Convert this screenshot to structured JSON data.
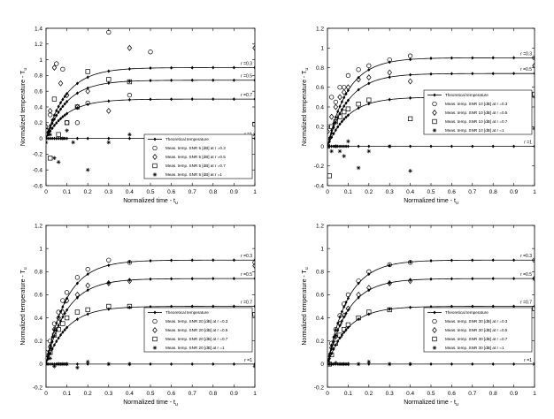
{
  "chart_data": [
    {
      "type": "line",
      "xlabel": "Normalized time - t",
      "xlabel_sub": "u",
      "ylabel": "Normalized temperature - T",
      "ylabel_sub": "u",
      "xlim": [
        0,
        1
      ],
      "ylim": [
        -0.6,
        1.4
      ],
      "xticks": [
        0,
        0.1,
        0.2,
        0.3,
        0.4,
        0.5,
        0.6,
        0.7,
        0.8,
        0.9,
        1
      ],
      "yticks": [
        -0.6,
        -0.4,
        -0.2,
        0,
        0.2,
        0.4,
        0.6,
        0.8,
        1,
        1.2,
        1.4
      ],
      "legend_position": "lower-right",
      "curve_labels": [
        {
          "label": "r =0.3",
          "y": 0.9
        },
        {
          "label": "r =0.5",
          "y": 0.74
        },
        {
          "label": "r =0.7",
          "y": 0.5
        },
        {
          "label": "r =1",
          "y": 0.0
        }
      ],
      "theory": {
        "name": "Theoretical temperature",
        "x": [
          0,
          0.01,
          0.02,
          0.03,
          0.04,
          0.05,
          0.06,
          0.07,
          0.08,
          0.09,
          0.1,
          0.15,
          0.2,
          0.3,
          0.4,
          0.5,
          0.6,
          0.7,
          0.8,
          0.9,
          1
        ],
        "levels": [
          0.9,
          0.74,
          0.5,
          0.0
        ],
        "rate": 10
      },
      "series": [
        {
          "name": "Meas. temp. SNR 5 [dB] at r =0.3",
          "marker": "circle",
          "x": [
            0,
            0.02,
            0.05,
            0.08,
            0.1,
            0.15,
            0.2,
            0.3,
            0.4,
            0.5
          ],
          "y": [
            0.1,
            0.3,
            0.95,
            0.88,
            0.2,
            0.2,
            0.45,
            1.35,
            0.55,
            1.1
          ]
        },
        {
          "name": "Meas. temp. SNR 5 [dB] at r =0.5",
          "marker": "diamond",
          "x": [
            0,
            0.02,
            0.04,
            0.07,
            0.1,
            0.15,
            0.2,
            0.3,
            0.4,
            1
          ],
          "y": [
            0.15,
            0.35,
            0.9,
            0.7,
            0.55,
            0.4,
            0.6,
            0.35,
            1.15,
            1.15
          ]
        },
        {
          "name": "Meas. temp. SNR 5 [dB] at r =0.7",
          "marker": "square",
          "x": [
            0,
            0.02,
            0.04,
            0.06,
            0.1,
            0.15,
            0.2,
            0.3,
            0.4,
            1
          ],
          "y": [
            0.1,
            -0.25,
            0.5,
            0.05,
            0.2,
            0.4,
            0.85,
            0.75,
            0.72,
            0.18
          ]
        },
        {
          "name": "Meas. temp. SNR 5 [dB] at r =1",
          "marker": "star",
          "x": [
            0,
            0.02,
            0.04,
            0.06,
            0.08,
            0.1,
            0.13,
            0.2,
            0.3,
            0.4,
            1
          ],
          "y": [
            -0.05,
            0.05,
            -0.25,
            -0.3,
            0.0,
            0.1,
            -0.05,
            -0.4,
            -0.05,
            0.05,
            0.05
          ]
        }
      ]
    },
    {
      "type": "line",
      "xlabel": "Normalized time - t",
      "xlabel_sub": "u",
      "ylabel": "Normalized temperature - T",
      "ylabel_sub": "u",
      "xlim": [
        0,
        1
      ],
      "ylim": [
        -0.4,
        1.2
      ],
      "xticks": [
        0,
        0.1,
        0.2,
        0.3,
        0.4,
        0.5,
        0.6,
        0.7,
        0.8,
        0.9,
        1
      ],
      "yticks": [
        -0.4,
        -0.2,
        0,
        0.2,
        0.4,
        0.6,
        0.8,
        1,
        1.2
      ],
      "legend_position": "center-right",
      "curve_labels": [
        {
          "label": "r =0.3",
          "y": 0.9
        },
        {
          "label": "r =0.5",
          "y": 0.74
        },
        {
          "label": "r =0.7",
          "y": 0.5
        },
        {
          "label": "r =1",
          "y": 0.0
        }
      ],
      "theory": {
        "name": "Theoretical temperature",
        "x": [
          0,
          0.01,
          0.02,
          0.03,
          0.04,
          0.05,
          0.06,
          0.07,
          0.08,
          0.09,
          0.1,
          0.15,
          0.2,
          0.3,
          0.4,
          0.5,
          0.6,
          0.7,
          0.8,
          0.9,
          1
        ],
        "levels": [
          0.9,
          0.74,
          0.5,
          0.0
        ],
        "rate": 10
      },
      "series": [
        {
          "name": "Meas. temp. SNR 10 [dB] at r =0.3",
          "marker": "circle",
          "x": [
            0,
            0.02,
            0.04,
            0.06,
            0.08,
            0.1,
            0.15,
            0.2,
            0.3,
            0.4,
            1
          ],
          "y": [
            0.2,
            0.5,
            0.45,
            0.6,
            0.6,
            0.72,
            0.78,
            0.82,
            0.88,
            0.92,
            0.9
          ]
        },
        {
          "name": "Meas. temp. SNR 10 [dB] at r =0.5",
          "marker": "diamond",
          "x": [
            0,
            0.02,
            0.04,
            0.06,
            0.08,
            0.1,
            0.15,
            0.2,
            0.3,
            0.4,
            1
          ],
          "y": [
            0.15,
            0.3,
            0.4,
            0.5,
            0.55,
            0.6,
            0.68,
            0.7,
            0.75,
            0.66,
            0.82
          ]
        },
        {
          "name": "Meas. temp. SNR 10 [dB] at r =0.7",
          "marker": "square",
          "x": [
            0,
            0.01,
            0.02,
            0.04,
            0.06,
            0.08,
            0.1,
            0.15,
            0.2,
            0.4,
            1
          ],
          "y": [
            0.0,
            -0.3,
            0.2,
            0.25,
            0.3,
            0.35,
            0.38,
            0.43,
            0.47,
            0.28,
            0.53
          ]
        },
        {
          "name": "Meas. temp. SNR 10 [dB] at r =1",
          "marker": "star",
          "x": [
            0,
            0.02,
            0.04,
            0.06,
            0.08,
            0.1,
            0.15,
            0.2,
            0.3,
            0.4,
            1
          ],
          "y": [
            0.0,
            -0.05,
            0.0,
            -0.05,
            -0.1,
            0.05,
            -0.22,
            -0.05,
            0.0,
            -0.25,
            0.18
          ]
        }
      ]
    },
    {
      "type": "line",
      "xlabel": "Normalized time - t",
      "xlabel_sub": "u",
      "ylabel": "Normalized temperature - T",
      "ylabel_sub": "u",
      "xlim": [
        0,
        1
      ],
      "ylim": [
        -0.2,
        1.2
      ],
      "xticks": [
        0,
        0.1,
        0.2,
        0.3,
        0.4,
        0.5,
        0.6,
        0.7,
        0.8,
        0.9,
        1
      ],
      "yticks": [
        -0.2,
        0,
        0.2,
        0.4,
        0.6,
        0.8,
        1,
        1.2
      ],
      "legend_position": "lower-right",
      "curve_labels": [
        {
          "label": "r =0.3",
          "y": 0.9
        },
        {
          "label": "r =0.5",
          "y": 0.74
        },
        {
          "label": "r =0.7",
          "y": 0.5
        },
        {
          "label": "r =1",
          "y": 0.0
        }
      ],
      "theory": {
        "name": "Theoretical temperature",
        "x": [
          0,
          0.01,
          0.02,
          0.03,
          0.04,
          0.05,
          0.06,
          0.07,
          0.08,
          0.09,
          0.1,
          0.15,
          0.2,
          0.3,
          0.4,
          0.5,
          0.6,
          0.7,
          0.8,
          0.9,
          1
        ],
        "levels": [
          0.9,
          0.74,
          0.5,
          0.0
        ],
        "rate": 10
      },
      "series": [
        {
          "name": "Meas. temp. SNR 20 [dB] at r =0.3",
          "marker": "circle",
          "x": [
            0,
            0.02,
            0.04,
            0.06,
            0.08,
            0.1,
            0.15,
            0.2,
            0.3,
            0.4,
            1
          ],
          "y": [
            0.1,
            0.2,
            0.35,
            0.45,
            0.55,
            0.62,
            0.75,
            0.82,
            0.9,
            0.88,
            0.88
          ]
        },
        {
          "name": "Meas. temp. SNR 20 [dB] at r =0.5",
          "marker": "diamond",
          "x": [
            0,
            0.02,
            0.04,
            0.06,
            0.08,
            0.1,
            0.15,
            0.2,
            0.3,
            0.4,
            1
          ],
          "y": [
            0.05,
            0.15,
            0.3,
            0.4,
            0.45,
            0.55,
            0.6,
            0.68,
            0.7,
            0.72,
            0.85
          ]
        },
        {
          "name": "Meas. temp. SNR 20 [dB] at r =0.7",
          "marker": "square",
          "x": [
            0,
            0.02,
            0.04,
            0.06,
            0.08,
            0.1,
            0.15,
            0.2,
            0.3,
            0.4,
            1
          ],
          "y": [
            0.05,
            0.1,
            0.25,
            0.3,
            0.35,
            0.4,
            0.45,
            0.47,
            0.5,
            0.5,
            0.43
          ]
        },
        {
          "name": "Meas. temp. SNR 20 [dB] at r =1",
          "marker": "star",
          "x": [
            0,
            0.02,
            0.04,
            0.06,
            0.08,
            0.1,
            0.15,
            0.2,
            0.3,
            0.4,
            1
          ],
          "y": [
            0.0,
            0.05,
            -0.02,
            0.0,
            0.0,
            0.0,
            -0.03,
            0.02,
            0.0,
            0.0,
            -0.02
          ]
        }
      ]
    },
    {
      "type": "line",
      "xlabel": "Normalized time - t",
      "xlabel_sub": "u",
      "ylabel": "Normalized temperature - T",
      "ylabel_sub": "u",
      "xlim": [
        0,
        1
      ],
      "ylim": [
        -0.2,
        1.2
      ],
      "xticks": [
        0,
        0.1,
        0.2,
        0.3,
        0.4,
        0.5,
        0.6,
        0.7,
        0.8,
        0.9,
        1
      ],
      "yticks": [
        -0.2,
        0,
        0.2,
        0.4,
        0.6,
        0.8,
        1,
        1.2
      ],
      "legend_position": "lower-right",
      "curve_labels": [
        {
          "label": "r =0.3",
          "y": 0.9
        },
        {
          "label": "r =0.5",
          "y": 0.74
        },
        {
          "label": "r =0.7",
          "y": 0.5
        },
        {
          "label": "r =1",
          "y": 0.0
        }
      ],
      "theory": {
        "name": "Theoretical temperature",
        "x": [
          0,
          0.01,
          0.02,
          0.03,
          0.04,
          0.05,
          0.06,
          0.07,
          0.08,
          0.09,
          0.1,
          0.15,
          0.2,
          0.3,
          0.4,
          0.5,
          0.6,
          0.7,
          0.8,
          0.9,
          1
        ],
        "levels": [
          0.9,
          0.74,
          0.5,
          0.0
        ],
        "rate": 10
      },
      "series": [
        {
          "name": "Meas. temp. SNR 30 [dB] at r =0.3",
          "marker": "circle",
          "x": [
            0,
            0.02,
            0.04,
            0.06,
            0.08,
            0.1,
            0.15,
            0.2,
            0.3,
            0.4,
            1
          ],
          "y": [
            0.05,
            0.18,
            0.3,
            0.42,
            0.52,
            0.6,
            0.72,
            0.8,
            0.86,
            0.88,
            0.9
          ]
        },
        {
          "name": "Meas. temp. SNR 30 [dB] at r =0.5",
          "marker": "diamond",
          "x": [
            0,
            0.02,
            0.04,
            0.06,
            0.08,
            0.1,
            0.15,
            0.2,
            0.3,
            0.4,
            1
          ],
          "y": [
            0.03,
            0.14,
            0.24,
            0.35,
            0.42,
            0.48,
            0.6,
            0.66,
            0.7,
            0.72,
            0.74
          ]
        },
        {
          "name": "Meas. temp. SNR 30 [dB] at r =0.7",
          "marker": "square",
          "x": [
            0,
            0.01,
            0.02,
            0.04,
            0.06,
            0.08,
            0.1,
            0.15,
            0.2,
            0.3,
            1
          ],
          "y": [
            0.02,
            0.0,
            0.08,
            0.18,
            0.25,
            0.3,
            0.34,
            0.4,
            0.45,
            0.47,
            0.48
          ]
        },
        {
          "name": "Meas. temp. SNR 30 [dB] at r =1",
          "marker": "star",
          "x": [
            0,
            0.02,
            0.04,
            0.06,
            0.08,
            0.1,
            0.15,
            0.2,
            0.3,
            0.4,
            1
          ],
          "y": [
            0.0,
            0.0,
            0.01,
            0.0,
            0.0,
            0.0,
            0.0,
            0.02,
            0.0,
            0.0,
            0.0
          ]
        }
      ]
    }
  ]
}
